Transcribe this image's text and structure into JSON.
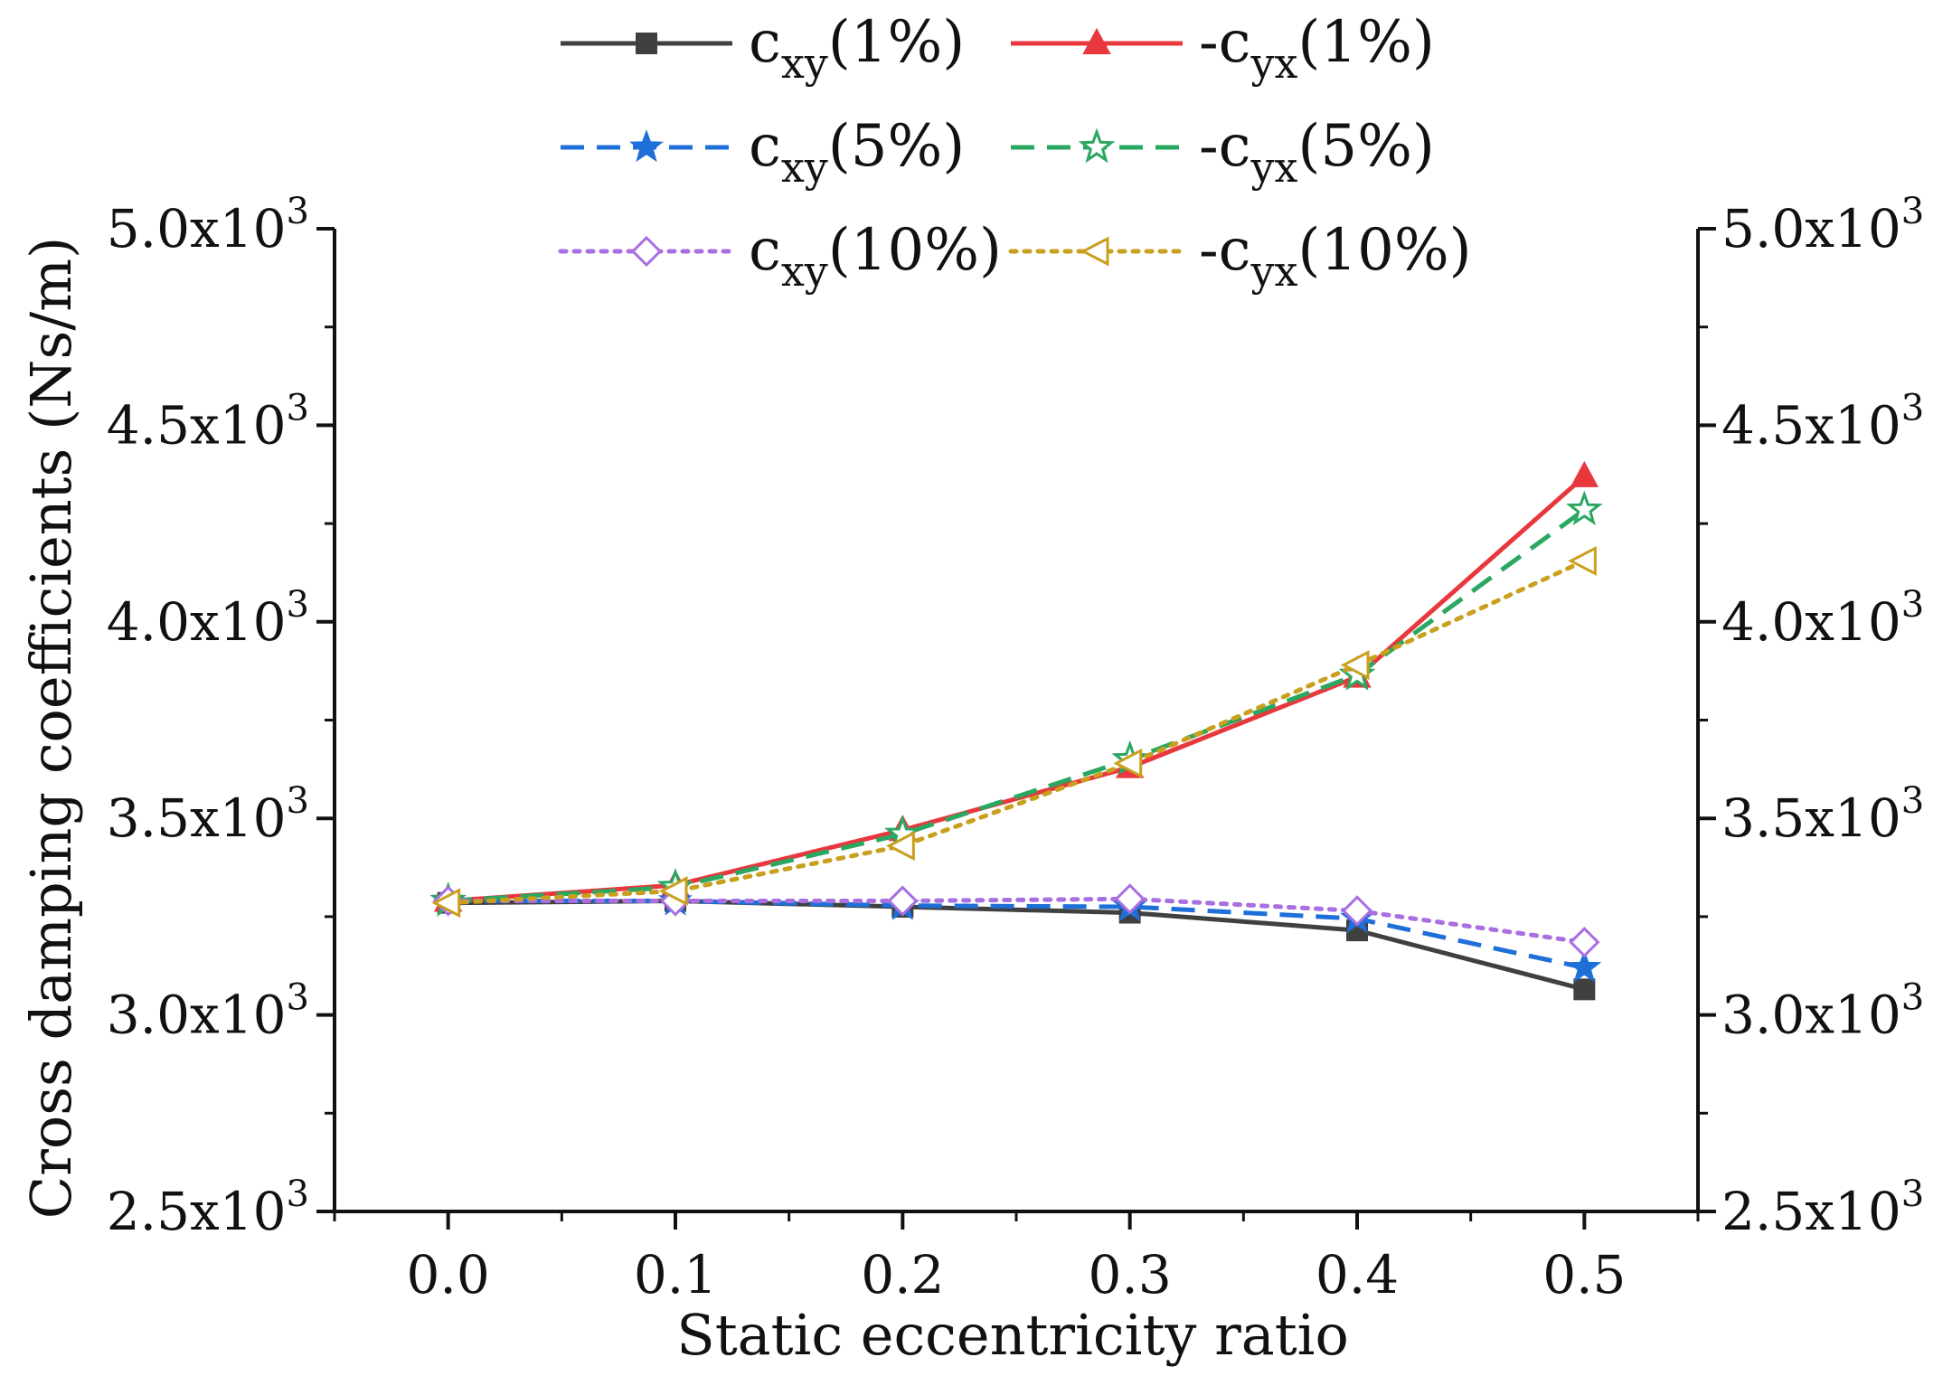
{
  "chart_data": {
    "type": "line",
    "xlabel": "Static eccentricity ratio",
    "ylabel": "Cross damping coefficients (Ns/m)",
    "x": [
      0.0,
      0.1,
      0.2,
      0.3,
      0.4,
      0.5
    ],
    "xlim": [
      -0.05,
      0.55
    ],
    "ylim": [
      2500,
      5000
    ],
    "x_ticks": [
      "0.0",
      "0.1",
      "0.2",
      "0.3",
      "0.4",
      "0.5"
    ],
    "y_ticks": [
      {
        "value": 2500,
        "mantissa": "2.5",
        "times": "x10",
        "exp": "3"
      },
      {
        "value": 3000,
        "mantissa": "3.0",
        "times": "x10",
        "exp": "3"
      },
      {
        "value": 3500,
        "mantissa": "3.5",
        "times": "x10",
        "exp": "3"
      },
      {
        "value": 4000,
        "mantissa": "4.0",
        "times": "x10",
        "exp": "3"
      },
      {
        "value": 4500,
        "mantissa": "4.5",
        "times": "x10",
        "exp": "3"
      },
      {
        "value": 5000,
        "mantissa": "5.0",
        "times": "x10",
        "exp": "3"
      }
    ],
    "legend_position": "top",
    "series": [
      {
        "name": "cxy(1%)",
        "prefix": "",
        "base": "c",
        "sub": "xy",
        "suffix": "(1%)",
        "color": "#404040",
        "dash": "solid",
        "marker": "square-filled",
        "values": [
          3285,
          3290,
          3275,
          3260,
          3215,
          3065
        ]
      },
      {
        "name": "-cyx(1%)",
        "prefix": "-",
        "base": "c",
        "sub": "yx",
        "suffix": "(1%)",
        "color": "#e8383d",
        "dash": "solid",
        "marker": "triangle-up-filled",
        "values": [
          3290,
          3330,
          3470,
          3630,
          3860,
          4370
        ]
      },
      {
        "name": "cxy(5%)",
        "prefix": "",
        "base": "c",
        "sub": "xy",
        "suffix": "(5%)",
        "color": "#1f6fd8",
        "dash": "dashed",
        "marker": "star-filled",
        "values": [
          3290,
          3290,
          3278,
          3275,
          3245,
          3120
        ]
      },
      {
        "name": "-cyx(5%)",
        "prefix": "-",
        "base": "c",
        "sub": "yx",
        "suffix": "(5%)",
        "color": "#2aa760",
        "dash": "dashed",
        "marker": "star-open",
        "values": [
          3290,
          3325,
          3460,
          3650,
          3865,
          4285
        ]
      },
      {
        "name": "cxy(10%)",
        "prefix": "",
        "base": "c",
        "sub": "xy",
        "suffix": "(10%)",
        "color": "#a96ee0",
        "dash": "dotted",
        "marker": "diamond-open",
        "values": [
          3290,
          3290,
          3290,
          3295,
          3265,
          3185
        ]
      },
      {
        "name": "-cyx(10%)",
        "prefix": "-",
        "base": "c",
        "sub": "yx",
        "suffix": "(10%)",
        "color": "#c9a01e",
        "dash": "dotted",
        "marker": "triangle-left-open",
        "values": [
          3285,
          3315,
          3430,
          3640,
          3890,
          4155
        ]
      }
    ]
  }
}
